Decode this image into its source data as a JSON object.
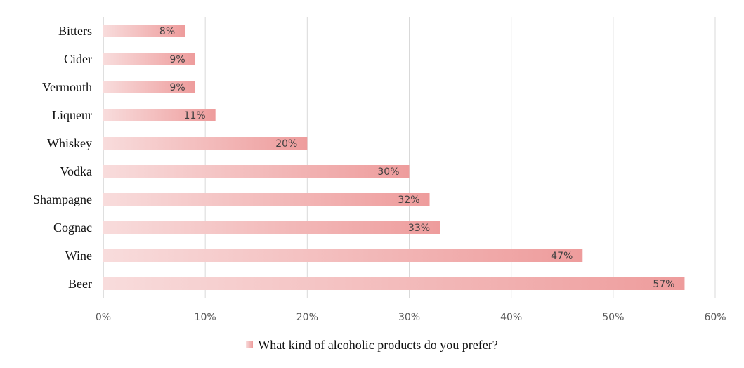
{
  "chart_data": {
    "type": "bar",
    "orientation": "horizontal",
    "categories": [
      "Bitters",
      "Cider",
      "Vermouth",
      "Liqueur",
      "Whiskey",
      "Vodka",
      "Shampagne",
      "Cognac",
      "Wine",
      "Beer"
    ],
    "series": [
      {
        "name": "What kind of alcoholic products do you prefer?",
        "values": [
          8,
          9,
          9,
          11,
          20,
          30,
          32,
          33,
          47,
          57
        ],
        "data_labels": [
          "8%",
          "9%",
          "9%",
          "11%",
          "20%",
          "30%",
          "32%",
          "33%",
          "47%",
          "57%"
        ]
      }
    ],
    "xlim": [
      0,
      60
    ],
    "x_ticks": [
      0,
      10,
      20,
      30,
      40,
      50,
      60
    ],
    "x_tick_labels": [
      "0%",
      "10%",
      "20%",
      "30%",
      "40%",
      "50%",
      "60%"
    ],
    "grid": true,
    "legend_position": "bottom",
    "colors": {
      "bar_light": "#f8dcdc",
      "bar_dark": "#ee9c9c",
      "grid": "#d9d9d9"
    }
  }
}
